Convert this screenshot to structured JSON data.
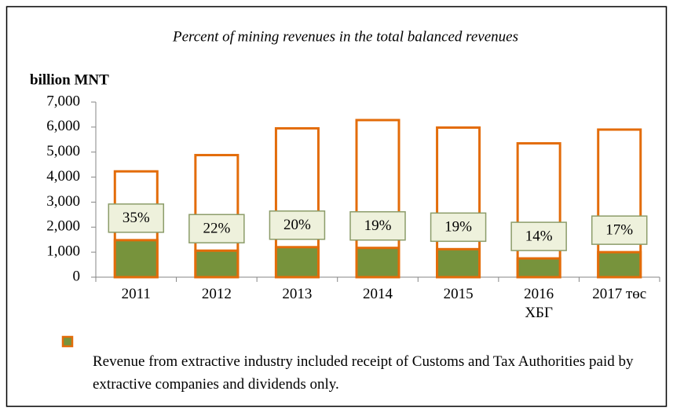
{
  "chart_data": {
    "type": "bar",
    "title": "Percent of mining revenues in the total balanced revenues",
    "y_axis_label": "billion MNT",
    "categories": [
      "2011",
      "2012",
      "2013",
      "2014",
      "2015",
      "2016\nХБГ",
      "2017 төс"
    ],
    "series": [
      {
        "color": "#ffffff",
        "edge_color": "#e36c0a",
        "values": [
          4230,
          4880,
          5950,
          6280,
          5980,
          5350,
          5900
        ]
      },
      {
        "name": "Revenue from extractive industry included receipt of Customs and Tax Authorities  paid by extractive companies and dividends only.",
        "color": "#77933c",
        "edge_color": "#e36c0a",
        "values": [
          1480,
          1060,
          1200,
          1170,
          1120,
          750,
          1000
        ]
      }
    ],
    "percent_labels": {
      "values": [
        35,
        22,
        20,
        19,
        19,
        14,
        17
      ],
      "value_labels": [
        "35%",
        "22%",
        "20%",
        "19%",
        "19%",
        "14%",
        "17%"
      ]
    },
    "ylim": [
      0,
      7000
    ],
    "yticks": [
      0,
      {
        "value": 1000,
        "label": "1,000"
      },
      {
        "value": 2000,
        "label": "2,000"
      },
      {
        "value": 3000,
        "label": "3,000"
      },
      {
        "value": 4000,
        "label": "4,000"
      },
      {
        "value": 5000,
        "label": "5,000"
      },
      {
        "value": 6000,
        "label": "6,000"
      },
      {
        "value": 7000,
        "label": "7,000"
      }
    ],
    "legend": "bottom-left"
  }
}
